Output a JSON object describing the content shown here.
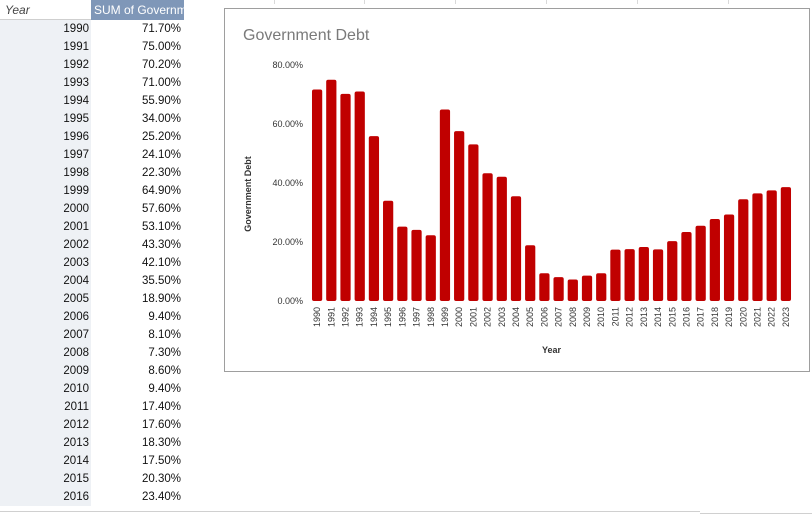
{
  "pivot": {
    "header_year": "Year",
    "header_value": "SUM of Governm",
    "rows": [
      {
        "year": "1990",
        "value": "71.70%"
      },
      {
        "year": "1991",
        "value": "75.00%"
      },
      {
        "year": "1992",
        "value": "70.20%"
      },
      {
        "year": "1993",
        "value": "71.00%"
      },
      {
        "year": "1994",
        "value": "55.90%"
      },
      {
        "year": "1995",
        "value": "34.00%"
      },
      {
        "year": "1996",
        "value": "25.20%"
      },
      {
        "year": "1997",
        "value": "24.10%"
      },
      {
        "year": "1998",
        "value": "22.30%"
      },
      {
        "year": "1999",
        "value": "64.90%"
      },
      {
        "year": "2000",
        "value": "57.60%"
      },
      {
        "year": "2001",
        "value": "53.10%"
      },
      {
        "year": "2002",
        "value": "43.30%"
      },
      {
        "year": "2003",
        "value": "42.10%"
      },
      {
        "year": "2004",
        "value": "35.50%"
      },
      {
        "year": "2005",
        "value": "18.90%"
      },
      {
        "year": "2006",
        "value": "9.40%"
      },
      {
        "year": "2007",
        "value": "8.10%"
      },
      {
        "year": "2008",
        "value": "7.30%"
      },
      {
        "year": "2009",
        "value": "8.60%"
      },
      {
        "year": "2010",
        "value": "9.40%"
      },
      {
        "year": "2011",
        "value": "17.40%"
      },
      {
        "year": "2012",
        "value": "17.60%"
      },
      {
        "year": "2013",
        "value": "18.30%"
      },
      {
        "year": "2014",
        "value": "17.50%"
      },
      {
        "year": "2015",
        "value": "20.30%"
      },
      {
        "year": "2016",
        "value": "23.40%"
      }
    ]
  },
  "colors": {
    "bar": "#c00000",
    "header_bg": "#7f97b8",
    "year_col_bg": "#eef1f5"
  },
  "chart_data": {
    "type": "bar",
    "title": "Government Debt",
    "xlabel": "Year",
    "ylabel": "Government Debt",
    "ylim": [
      0,
      80
    ],
    "yticks": [
      "0.00%",
      "20.00%",
      "40.00%",
      "60.00%",
      "80.00%"
    ],
    "grid": false,
    "legend": "none",
    "categories": [
      "1990",
      "1991",
      "1992",
      "1993",
      "1994",
      "1995",
      "1996",
      "1997",
      "1998",
      "1999",
      "2000",
      "2001",
      "2002",
      "2003",
      "2004",
      "2005",
      "2006",
      "2007",
      "2008",
      "2009",
      "2010",
      "2011",
      "2012",
      "2013",
      "2014",
      "2015",
      "2016",
      "2017",
      "2018",
      "2019",
      "2020",
      "2021",
      "2022",
      "2023"
    ],
    "values": [
      71.7,
      75.0,
      70.2,
      71.0,
      55.9,
      34.0,
      25.2,
      24.1,
      22.3,
      64.9,
      57.6,
      53.1,
      43.3,
      42.1,
      35.5,
      18.9,
      9.4,
      8.1,
      7.3,
      8.6,
      9.4,
      17.4,
      17.6,
      18.3,
      17.5,
      20.3,
      23.4,
      25.5,
      27.8,
      29.3,
      34.5,
      36.5,
      37.5,
      38.6
    ]
  }
}
